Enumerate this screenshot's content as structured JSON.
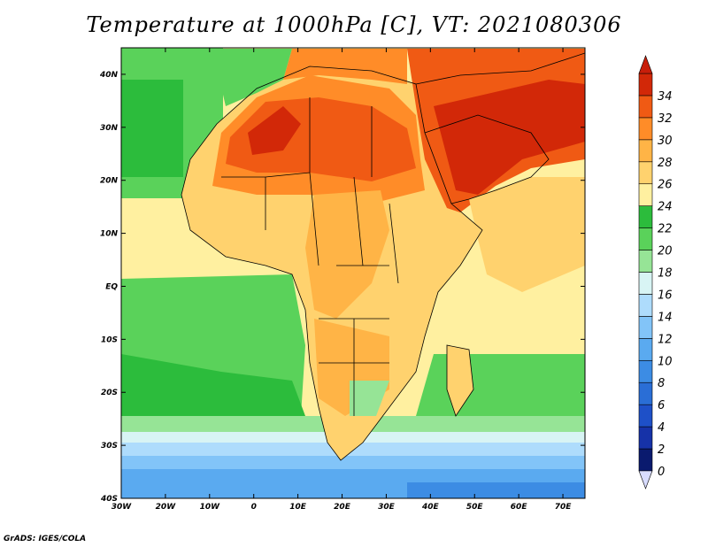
{
  "title": "Temperature at 1000hPa [C], VT: 2021080306",
  "credit": "GrADS: IGES/COLA",
  "map": {
    "lon_range": [
      -30,
      75
    ],
    "lat_range": [
      -40,
      45
    ],
    "lat_ticks": [
      {
        "value": 40,
        "label": "40N"
      },
      {
        "value": 30,
        "label": "30N"
      },
      {
        "value": 20,
        "label": "20N"
      },
      {
        "value": 10,
        "label": "10N"
      },
      {
        "value": 0,
        "label": "EQ"
      },
      {
        "value": -10,
        "label": "10S"
      },
      {
        "value": -20,
        "label": "20S"
      },
      {
        "value": -30,
        "label": "30S"
      },
      {
        "value": -40,
        "label": "40S"
      }
    ],
    "lon_ticks": [
      {
        "value": -30,
        "label": "30W"
      },
      {
        "value": -20,
        "label": "20W"
      },
      {
        "value": -10,
        "label": "10W"
      },
      {
        "value": 0,
        "label": "0"
      },
      {
        "value": 10,
        "label": "10E"
      },
      {
        "value": 20,
        "label": "20E"
      },
      {
        "value": 30,
        "label": "30E"
      },
      {
        "value": 40,
        "label": "40E"
      },
      {
        "value": 50,
        "label": "50E"
      },
      {
        "value": 60,
        "label": "60E"
      },
      {
        "value": 70,
        "label": "70E"
      }
    ]
  },
  "colorbar": {
    "levels": [
      0,
      2,
      4,
      6,
      8,
      10,
      12,
      14,
      16,
      18,
      20,
      22,
      24,
      26,
      28,
      30,
      32,
      34
    ],
    "colors": [
      "#0a1a6e",
      "#1632a8",
      "#1e50c8",
      "#2a6ed6",
      "#3c8ce4",
      "#5aaaf0",
      "#82c4f8",
      "#aedcfc",
      "#d8f4f4",
      "#96e496",
      "#5ad25a",
      "#2cbc3c",
      "#fff0a0",
      "#ffd26e",
      "#ffb446",
      "#ff8c28",
      "#f05a14",
      "#d22808"
    ],
    "low_color": "#d8dcff",
    "high_color": "#c81e0a"
  }
}
